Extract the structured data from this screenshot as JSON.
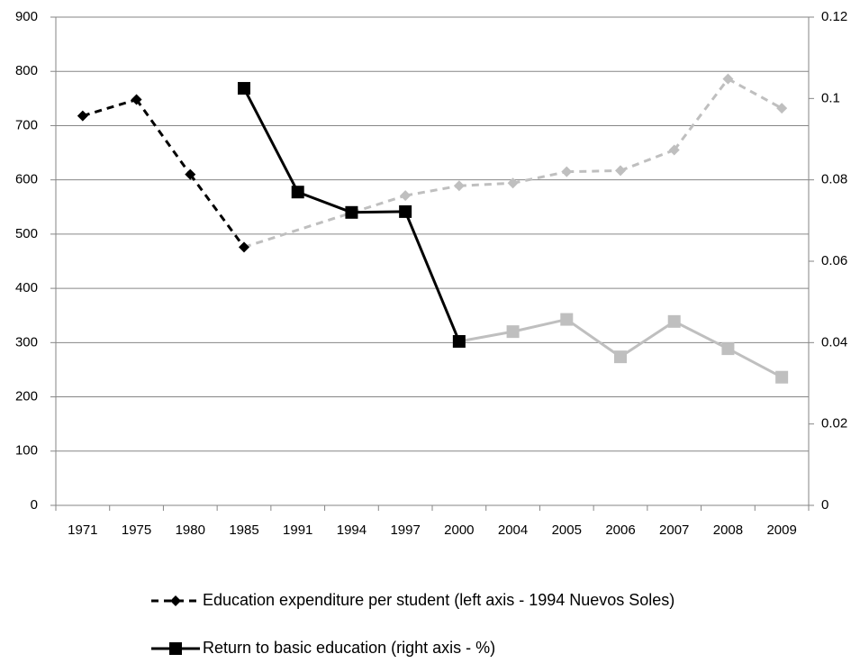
{
  "chart_data": {
    "type": "line",
    "categories": [
      "1971",
      "1975",
      "1980",
      "1985",
      "1991",
      "1994",
      "1997",
      "2000",
      "2004",
      "2005",
      "2006",
      "2007",
      "2008",
      "2009"
    ],
    "ylim": [
      0,
      900
    ],
    "yticks": [
      0,
      100,
      200,
      300,
      400,
      500,
      600,
      700,
      800,
      900
    ],
    "y2lim": [
      0,
      0.12
    ],
    "y2ticks": [
      0,
      0.02,
      0.04,
      0.06,
      0.08,
      0.1,
      0.12
    ],
    "grid": true,
    "span_gaps": true,
    "legend": "bottom",
    "series": [
      {
        "name": "Education expenditure per student (left axis - 1994 Nuevos Soles)",
        "color": "#000000",
        "dash": true,
        "marker": "diamond",
        "values": [
          718,
          748,
          610,
          476,
          null,
          null,
          571,
          589,
          594,
          615,
          617,
          655,
          786,
          732
        ],
        "colors": [
          "#000000",
          "#000000",
          "#000000",
          "#000000",
          null,
          null,
          "#bfbfbf",
          "#bfbfbf",
          "#bfbfbf",
          "#bfbfbf",
          "#bfbfbf",
          "#bfbfbf",
          "#bfbfbf",
          "#bfbfbf"
        ]
      },
      {
        "name": "Return to basic education (right axis - %)",
        "color": "#000000",
        "dash": false,
        "marker": "square",
        "axis": "y2",
        "values": [
          null,
          null,
          null,
          0.1025,
          0.077,
          0.072,
          0.0722,
          0.0403,
          0.0427,
          0.0457,
          0.0365,
          0.0452,
          0.0385,
          0.0315
        ],
        "colors": [
          null,
          null,
          null,
          "#000000",
          "#000000",
          "#000000",
          "#000000",
          "#000000",
          "#bfbfbf",
          "#bfbfbf",
          "#bfbfbf",
          "#bfbfbf",
          "#bfbfbf",
          "#bfbfbf"
        ]
      }
    ]
  }
}
